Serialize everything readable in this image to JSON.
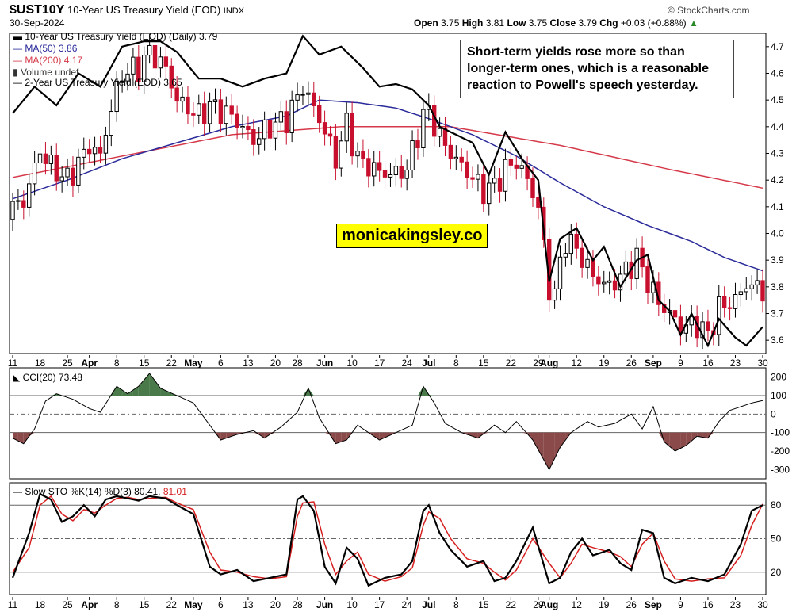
{
  "header": {
    "symbol": "$UST10Y",
    "title": "10-Year US Treasury Yield (EOD)",
    "exchange": "INDX",
    "source": "© StockCharts.com",
    "date": "30-Sep-2024",
    "open_label": "Open",
    "open": "3.75",
    "high_label": "High",
    "high": "3.81",
    "low_label": "Low",
    "low": "3.75",
    "close_label": "Close",
    "close": "3.79",
    "chg_label": "Chg",
    "chg": "+0.03 (+0.88%)"
  },
  "annotation": "Short-term yields rose more so than longer-term ones, which is a reasonable reaction to Powell's speech yesterday.",
  "watermark": "monicakingsley.co",
  "colors": {
    "up": "#000000",
    "down": "#c8102e",
    "ma50": "#2a2a9a",
    "ma200": "#d63a4a",
    "two_year": "#000000",
    "cci_pos_fill": "#4a7a4a",
    "cci_neg_fill": "#8b4a4a",
    "sto_k": "#000000",
    "sto_d": "#d62020",
    "grid": "#999999"
  },
  "chart_data": [
    {
      "type": "line",
      "name": "price",
      "legend": [
        {
          "label": "10-Year US Treasury Yield (EOD) (Daily) 3.79",
          "color": "#000000"
        },
        {
          "label": "MA(50) 3.86",
          "color": "#2a2a9a"
        },
        {
          "label": "MA(200) 4.17",
          "color": "#d63a4a"
        },
        {
          "label": "Volume undef",
          "color": "#555555"
        },
        {
          "label": "2-Year US Treasury Yield (EOD) 3.65",
          "color": "#000000"
        }
      ],
      "x_labels": [
        "11",
        "18",
        "25",
        "Apr",
        "8",
        "15",
        "22",
        "May",
        "6",
        "13",
        "20",
        "28",
        "Jun",
        "10",
        "17",
        "24",
        "Jul",
        "8",
        "15",
        "22",
        "29",
        "Aug",
        "12",
        "19",
        "26",
        "Sep",
        "9",
        "16",
        "23",
        "30"
      ],
      "bold_x_labels": [
        "Apr",
        "May",
        "Jun",
        "Jul",
        "Aug",
        "Sep"
      ],
      "x_label_days": [
        0,
        5,
        10,
        14,
        19,
        24,
        29,
        33,
        38,
        43,
        48,
        52,
        57,
        62,
        67,
        72,
        76,
        81,
        86,
        91,
        96,
        98,
        103,
        108,
        113,
        117,
        122,
        127,
        132,
        137
      ],
      "ylim": [
        3.55,
        4.75
      ],
      "yticks": [
        3.6,
        3.7,
        3.8,
        3.9,
        4.0,
        4.1,
        4.2,
        4.3,
        4.4,
        4.5,
        4.6,
        4.7
      ],
      "ytick_labels": [
        "3.6",
        "3.7",
        "3.8",
        "3.9",
        "4.0",
        "4.1",
        "4.2",
        "4.3",
        "4.4",
        "4.5",
        "4.6",
        "4.7"
      ],
      "close_anchors": [
        [
          0,
          4.1
        ],
        [
          2,
          4.12
        ],
        [
          5,
          4.31
        ],
        [
          7,
          4.25
        ],
        [
          10,
          4.2
        ],
        [
          14,
          4.33
        ],
        [
          16,
          4.29
        ],
        [
          18,
          4.47
        ],
        [
          20,
          4.6
        ],
        [
          23,
          4.62
        ],
        [
          25,
          4.68
        ],
        [
          28,
          4.62
        ],
        [
          30,
          4.5
        ],
        [
          34,
          4.44
        ],
        [
          36,
          4.48
        ],
        [
          40,
          4.44
        ],
        [
          44,
          4.35
        ],
        [
          47,
          4.4
        ],
        [
          50,
          4.43
        ],
        [
          53,
          4.55
        ],
        [
          56,
          4.43
        ],
        [
          59,
          4.28
        ],
        [
          61,
          4.41
        ],
        [
          63,
          4.28
        ],
        [
          66,
          4.24
        ],
        [
          69,
          4.22
        ],
        [
          72,
          4.24
        ],
        [
          75,
          4.44
        ],
        [
          76,
          4.46
        ],
        [
          78,
          4.36
        ],
        [
          80,
          4.3
        ],
        [
          83,
          4.23
        ],
        [
          86,
          4.16
        ],
        [
          88,
          4.18
        ],
        [
          90,
          4.24
        ],
        [
          92,
          4.27
        ],
        [
          94,
          4.2
        ],
        [
          96,
          4.1
        ],
        [
          98,
          3.79
        ],
        [
          99,
          3.78
        ],
        [
          101,
          3.98
        ],
        [
          103,
          3.94
        ],
        [
          106,
          3.84
        ],
        [
          109,
          3.8
        ],
        [
          112,
          3.86
        ],
        [
          114,
          3.91
        ],
        [
          116,
          3.82
        ],
        [
          118,
          3.74
        ],
        [
          120,
          3.7
        ],
        [
          122,
          3.65
        ],
        [
          125,
          3.66
        ],
        [
          127,
          3.62
        ],
        [
          129,
          3.72
        ],
        [
          132,
          3.75
        ],
        [
          134,
          3.81
        ],
        [
          137,
          3.79
        ]
      ],
      "ma50_anchors": [
        [
          0,
          4.13
        ],
        [
          10,
          4.2
        ],
        [
          20,
          4.28
        ],
        [
          30,
          4.34
        ],
        [
          40,
          4.4
        ],
        [
          50,
          4.44
        ],
        [
          56,
          4.5
        ],
        [
          63,
          4.49
        ],
        [
          70,
          4.47
        ],
        [
          76,
          4.43
        ],
        [
          84,
          4.37
        ],
        [
          92,
          4.29
        ],
        [
          100,
          4.19
        ],
        [
          108,
          4.1
        ],
        [
          116,
          4.03
        ],
        [
          124,
          3.97
        ],
        [
          130,
          3.91
        ],
        [
          137,
          3.86
        ]
      ],
      "ma200_anchors": [
        [
          0,
          4.21
        ],
        [
          20,
          4.29
        ],
        [
          40,
          4.37
        ],
        [
          60,
          4.4
        ],
        [
          80,
          4.4
        ],
        [
          100,
          4.33
        ],
        [
          120,
          4.24
        ],
        [
          137,
          4.17
        ]
      ],
      "two_year_anchors": [
        [
          0,
          4.45
        ],
        [
          4,
          4.55
        ],
        [
          8,
          4.48
        ],
        [
          12,
          4.6
        ],
        [
          16,
          4.55
        ],
        [
          20,
          4.7
        ],
        [
          24,
          4.72
        ],
        [
          27,
          4.72
        ],
        [
          30,
          4.68
        ],
        [
          34,
          4.58
        ],
        [
          38,
          4.58
        ],
        [
          42,
          4.55
        ],
        [
          46,
          4.58
        ],
        [
          50,
          4.6
        ],
        [
          53,
          4.74
        ],
        [
          56,
          4.67
        ],
        [
          60,
          4.7
        ],
        [
          64,
          4.62
        ],
        [
          67,
          4.55
        ],
        [
          70,
          4.56
        ],
        [
          73,
          4.54
        ],
        [
          76,
          4.48
        ],
        [
          78,
          4.4
        ],
        [
          80,
          4.38
        ],
        [
          84,
          4.34
        ],
        [
          87,
          4.22
        ],
        [
          90,
          4.38
        ],
        [
          93,
          4.28
        ],
        [
          96,
          4.2
        ],
        [
          98,
          3.82
        ],
        [
          100,
          3.98
        ],
        [
          103,
          4.02
        ],
        [
          106,
          3.9
        ],
        [
          108,
          3.95
        ],
        [
          111,
          3.8
        ],
        [
          114,
          3.9
        ],
        [
          116,
          3.92
        ],
        [
          118,
          3.75
        ],
        [
          120,
          3.71
        ],
        [
          122,
          3.62
        ],
        [
          124,
          3.7
        ],
        [
          127,
          3.58
        ],
        [
          129,
          3.68
        ],
        [
          132,
          3.61
        ],
        [
          134,
          3.58
        ],
        [
          137,
          3.65
        ]
      ]
    },
    {
      "type": "line",
      "name": "cci",
      "label": "CCI(20) 73.48",
      "ylim": [
        -350,
        250
      ],
      "yticks": [
        200,
        100,
        0,
        -100,
        -200,
        -300
      ],
      "ytick_labels": [
        "200",
        "100",
        "0",
        "-100",
        "-200",
        "-300"
      ],
      "reference_lines": [
        100,
        -100
      ],
      "zero_line": 0,
      "anchors": [
        [
          0,
          -130
        ],
        [
          2,
          -160
        ],
        [
          4,
          -80
        ],
        [
          6,
          70
        ],
        [
          8,
          110
        ],
        [
          11,
          80
        ],
        [
          14,
          30
        ],
        [
          16,
          10
        ],
        [
          19,
          150
        ],
        [
          21,
          110
        ],
        [
          23,
          150
        ],
        [
          25,
          220
        ],
        [
          27,
          140
        ],
        [
          30,
          100
        ],
        [
          33,
          60
        ],
        [
          36,
          -60
        ],
        [
          38,
          -140
        ],
        [
          41,
          -110
        ],
        [
          44,
          -90
        ],
        [
          46,
          -130
        ],
        [
          49,
          -70
        ],
        [
          52,
          10
        ],
        [
          54,
          140
        ],
        [
          56,
          -20
        ],
        [
          59,
          -160
        ],
        [
          61,
          -140
        ],
        [
          63,
          -60
        ],
        [
          65,
          -100
        ],
        [
          67,
          -140
        ],
        [
          70,
          -100
        ],
        [
          73,
          -60
        ],
        [
          75,
          150
        ],
        [
          77,
          60
        ],
        [
          79,
          -50
        ],
        [
          82,
          -100
        ],
        [
          85,
          -130
        ],
        [
          88,
          -60
        ],
        [
          90,
          -100
        ],
        [
          92,
          -40
        ],
        [
          95,
          -140
        ],
        [
          98,
          -300
        ],
        [
          100,
          -180
        ],
        [
          102,
          -100
        ],
        [
          105,
          -40
        ],
        [
          107,
          -70
        ],
        [
          110,
          -50
        ],
        [
          113,
          0
        ],
        [
          115,
          -80
        ],
        [
          117,
          40
        ],
        [
          119,
          -150
        ],
        [
          121,
          -200
        ],
        [
          123,
          -170
        ],
        [
          125,
          -120
        ],
        [
          127,
          -130
        ],
        [
          129,
          -40
        ],
        [
          131,
          20
        ],
        [
          133,
          40
        ],
        [
          135,
          60
        ],
        [
          137,
          73
        ]
      ]
    },
    {
      "type": "line",
      "name": "stochastic",
      "label_k": "Slow STO %K(14) %D(3) 80.41,",
      "label_d": " 81.01",
      "ylim": [
        0,
        100
      ],
      "yticks": [
        80,
        50,
        20
      ],
      "ytick_labels": [
        "80",
        "50",
        "20"
      ],
      "reference_lines": [
        80,
        50,
        20
      ],
      "k_anchors": [
        [
          0,
          15
        ],
        [
          3,
          55
        ],
        [
          5,
          90
        ],
        [
          7,
          85
        ],
        [
          9,
          65
        ],
        [
          11,
          70
        ],
        [
          13,
          80
        ],
        [
          15,
          70
        ],
        [
          17,
          85
        ],
        [
          19,
          88
        ],
        [
          21,
          86
        ],
        [
          23,
          84
        ],
        [
          25,
          88
        ],
        [
          28,
          86
        ],
        [
          30,
          80
        ],
        [
          33,
          72
        ],
        [
          36,
          25
        ],
        [
          38,
          18
        ],
        [
          41,
          22
        ],
        [
          44,
          12
        ],
        [
          47,
          15
        ],
        [
          50,
          18
        ],
        [
          52,
          85
        ],
        [
          53,
          88
        ],
        [
          55,
          75
        ],
        [
          57,
          25
        ],
        [
          59,
          10
        ],
        [
          61,
          42
        ],
        [
          63,
          32
        ],
        [
          65,
          8
        ],
        [
          68,
          15
        ],
        [
          71,
          18
        ],
        [
          73,
          30
        ],
        [
          75,
          75
        ],
        [
          76,
          80
        ],
        [
          78,
          55
        ],
        [
          80,
          40
        ],
        [
          83,
          25
        ],
        [
          86,
          30
        ],
        [
          88,
          12
        ],
        [
          90,
          15
        ],
        [
          92,
          30
        ],
        [
          95,
          60
        ],
        [
          98,
          10
        ],
        [
          100,
          15
        ],
        [
          102,
          38
        ],
        [
          104,
          50
        ],
        [
          106,
          35
        ],
        [
          109,
          40
        ],
        [
          111,
          28
        ],
        [
          113,
          22
        ],
        [
          115,
          58
        ],
        [
          117,
          55
        ],
        [
          119,
          15
        ],
        [
          121,
          10
        ],
        [
          124,
          15
        ],
        [
          127,
          12
        ],
        [
          130,
          18
        ],
        [
          133,
          45
        ],
        [
          135,
          75
        ],
        [
          137,
          80
        ]
      ],
      "d_anchors": [
        [
          0,
          20
        ],
        [
          3,
          42
        ],
        [
          5,
          80
        ],
        [
          7,
          88
        ],
        [
          9,
          72
        ],
        [
          11,
          66
        ],
        [
          13,
          76
        ],
        [
          15,
          73
        ],
        [
          17,
          80
        ],
        [
          19,
          86
        ],
        [
          21,
          87
        ],
        [
          23,
          85
        ],
        [
          25,
          86
        ],
        [
          28,
          87
        ],
        [
          30,
          82
        ],
        [
          33,
          76
        ],
        [
          36,
          38
        ],
        [
          38,
          22
        ],
        [
          41,
          20
        ],
        [
          44,
          16
        ],
        [
          47,
          14
        ],
        [
          50,
          16
        ],
        [
          52,
          70
        ],
        [
          53,
          82
        ],
        [
          55,
          83
        ],
        [
          57,
          45
        ],
        [
          59,
          18
        ],
        [
          61,
          30
        ],
        [
          63,
          38
        ],
        [
          65,
          18
        ],
        [
          68,
          12
        ],
        [
          71,
          16
        ],
        [
          73,
          24
        ],
        [
          75,
          62
        ],
        [
          76,
          74
        ],
        [
          78,
          68
        ],
        [
          80,
          50
        ],
        [
          83,
          32
        ],
        [
          86,
          28
        ],
        [
          88,
          20
        ],
        [
          90,
          13
        ],
        [
          92,
          22
        ],
        [
          95,
          50
        ],
        [
          98,
          28
        ],
        [
          100,
          15
        ],
        [
          102,
          28
        ],
        [
          104,
          45
        ],
        [
          106,
          42
        ],
        [
          109,
          38
        ],
        [
          111,
          34
        ],
        [
          113,
          25
        ],
        [
          115,
          45
        ],
        [
          117,
          55
        ],
        [
          119,
          30
        ],
        [
          121,
          14
        ],
        [
          124,
          12
        ],
        [
          127,
          14
        ],
        [
          130,
          15
        ],
        [
          133,
          35
        ],
        [
          135,
          62
        ],
        [
          137,
          81
        ]
      ]
    }
  ]
}
